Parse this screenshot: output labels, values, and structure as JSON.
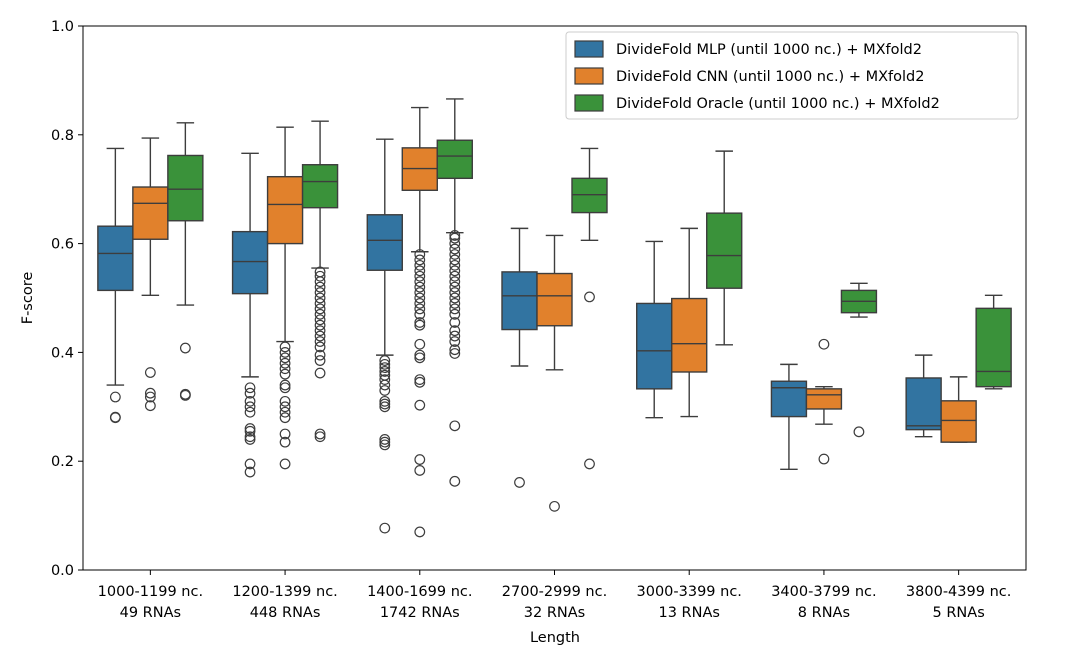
{
  "chart_data": {
    "type": "box",
    "ylabel": "F-score",
    "xlabel": "Length",
    "ylim": [
      0.0,
      1.0
    ],
    "yticks": [
      "0.0",
      "0.2",
      "0.4",
      "0.6",
      "0.8",
      "1.0"
    ],
    "grid": false,
    "legend_position": "top-right",
    "categories": [
      [
        "1000-1199 nc.",
        "49 RNAs"
      ],
      [
        "1200-1399 nc.",
        "448 RNAs"
      ],
      [
        "1400-1699 nc.",
        "1742 RNAs"
      ],
      [
        "2700-2999 nc.",
        "32 RNAs"
      ],
      [
        "3000-3399 nc.",
        "13 RNAs"
      ],
      [
        "3400-3799 nc.",
        "8 RNAs"
      ],
      [
        "3800-4399 nc.",
        "5 RNAs"
      ]
    ],
    "series": [
      {
        "name": "DivideFold MLP (until 1000 nc.) + MXfold2",
        "color": "#3274a1",
        "boxes": [
          {
            "whislo": 0.34,
            "q1": 0.514,
            "med": 0.582,
            "q3": 0.632,
            "whishi": 0.775,
            "fliers": [
              0.318,
              0.281,
              0.28
            ]
          },
          {
            "whislo": 0.355,
            "q1": 0.508,
            "med": 0.567,
            "q3": 0.622,
            "whishi": 0.766,
            "fliers": [
              0.335,
              0.325,
              0.31,
              0.3,
              0.29,
              0.26,
              0.255,
              0.245,
              0.24,
              0.195,
              0.18
            ]
          },
          {
            "whislo": 0.395,
            "q1": 0.551,
            "med": 0.606,
            "q3": 0.653,
            "whishi": 0.792,
            "fliers": [
              0.385,
              0.378,
              0.372,
              0.365,
              0.358,
              0.35,
              0.34,
              0.33,
              0.31,
              0.305,
              0.3,
              0.24,
              0.235,
              0.23,
              0.077
            ]
          },
          {
            "whislo": 0.375,
            "q1": 0.442,
            "med": 0.504,
            "q3": 0.548,
            "whishi": 0.628,
            "fliers": [
              0.161
            ]
          },
          {
            "whislo": 0.28,
            "q1": 0.333,
            "med": 0.403,
            "q3": 0.49,
            "whishi": 0.604,
            "fliers": []
          },
          {
            "whislo": 0.185,
            "q1": 0.282,
            "med": 0.335,
            "q3": 0.347,
            "whishi": 0.378,
            "fliers": []
          },
          {
            "whislo": 0.245,
            "q1": 0.258,
            "med": 0.265,
            "q3": 0.353,
            "whishi": 0.395,
            "fliers": []
          }
        ]
      },
      {
        "name": "DivideFold CNN (until 1000 nc.) + MXfold2",
        "color": "#e1812c",
        "boxes": [
          {
            "whislo": 0.505,
            "q1": 0.608,
            "med": 0.674,
            "q3": 0.704,
            "whishi": 0.794,
            "fliers": [
              0.363,
              0.325,
              0.318,
              0.302
            ]
          },
          {
            "whislo": 0.42,
            "q1": 0.6,
            "med": 0.672,
            "q3": 0.723,
            "whishi": 0.814,
            "fliers": [
              0.41,
              0.4,
              0.39,
              0.38,
              0.37,
              0.36,
              0.34,
              0.335,
              0.31,
              0.3,
              0.29,
              0.28,
              0.25,
              0.235,
              0.195
            ]
          },
          {
            "whislo": 0.585,
            "q1": 0.698,
            "med": 0.738,
            "q3": 0.776,
            "whishi": 0.85,
            "fliers": [
              0.58,
              0.57,
              0.56,
              0.55,
              0.54,
              0.53,
              0.52,
              0.51,
              0.5,
              0.49,
              0.48,
              0.47,
              0.455,
              0.45,
              0.415,
              0.395,
              0.39,
              0.35,
              0.345,
              0.303,
              0.203,
              0.183,
              0.07
            ]
          },
          {
            "whislo": 0.368,
            "q1": 0.449,
            "med": 0.504,
            "q3": 0.545,
            "whishi": 0.615,
            "fliers": [
              0.117
            ]
          },
          {
            "whislo": 0.282,
            "q1": 0.364,
            "med": 0.416,
            "q3": 0.499,
            "whishi": 0.628,
            "fliers": []
          },
          {
            "whislo": 0.268,
            "q1": 0.296,
            "med": 0.322,
            "q3": 0.333,
            "whishi": 0.337,
            "fliers": [
              0.415,
              0.204
            ]
          },
          {
            "whislo": 0.235,
            "q1": 0.235,
            "med": 0.275,
            "q3": 0.311,
            "whishi": 0.355,
            "fliers": []
          }
        ]
      },
      {
        "name": "DivideFold Oracle (until 1000 nc.) + MXfold2",
        "color": "#3a923a",
        "boxes": [
          {
            "whislo": 0.487,
            "q1": 0.642,
            "med": 0.7,
            "q3": 0.762,
            "whishi": 0.822,
            "fliers": [
              0.408,
              0.323,
              0.321
            ]
          },
          {
            "whislo": 0.555,
            "q1": 0.666,
            "med": 0.714,
            "q3": 0.745,
            "whishi": 0.825,
            "fliers": [
              0.548,
              0.54,
              0.53,
              0.52,
              0.51,
              0.5,
              0.49,
              0.48,
              0.47,
              0.46,
              0.45,
              0.44,
              0.43,
              0.42,
              0.41,
              0.395,
              0.385,
              0.362,
              0.25,
              0.245
            ]
          },
          {
            "whislo": 0.62,
            "q1": 0.72,
            "med": 0.761,
            "q3": 0.79,
            "whishi": 0.866,
            "fliers": [
              0.615,
              0.61,
              0.6,
              0.59,
              0.58,
              0.57,
              0.56,
              0.55,
              0.54,
              0.53,
              0.52,
              0.51,
              0.5,
              0.49,
              0.48,
              0.47,
              0.455,
              0.44,
              0.43,
              0.42,
              0.405,
              0.398,
              0.265,
              0.163
            ]
          },
          {
            "whislo": 0.606,
            "q1": 0.657,
            "med": 0.69,
            "q3": 0.72,
            "whishi": 0.775,
            "fliers": [
              0.502,
              0.195
            ]
          },
          {
            "whislo": 0.414,
            "q1": 0.518,
            "med": 0.578,
            "q3": 0.656,
            "whishi": 0.77,
            "fliers": []
          },
          {
            "whislo": 0.465,
            "q1": 0.473,
            "med": 0.494,
            "q3": 0.514,
            "whishi": 0.527,
            "fliers": [
              0.254
            ]
          },
          {
            "whislo": 0.333,
            "q1": 0.337,
            "med": 0.365,
            "q3": 0.481,
            "whishi": 0.505,
            "fliers": []
          }
        ]
      }
    ]
  }
}
